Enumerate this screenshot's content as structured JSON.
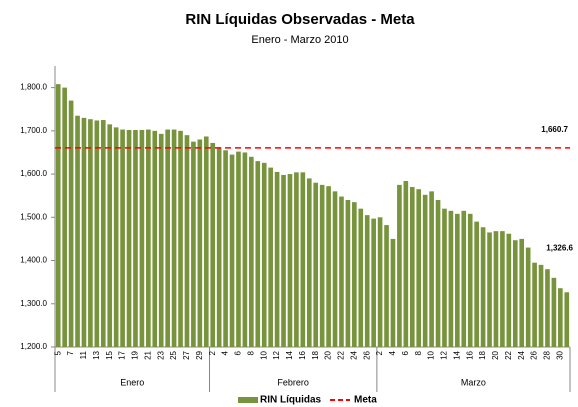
{
  "chart_data": {
    "type": "bar",
    "title": "RIN Líquidas Observadas - Meta",
    "subtitle": "Enero - Marzo 2010",
    "category_groups": [
      {
        "label": "Enero",
        "categories": [
          "5",
          null,
          "7",
          null,
          "11",
          null,
          "13",
          null,
          "15",
          null,
          "17",
          null,
          "19",
          null,
          "21",
          null,
          "23",
          null,
          "25",
          null,
          "27",
          null,
          "29",
          null
        ]
      },
      {
        "label": "Febrero",
        "categories": [
          "2",
          null,
          "4",
          null,
          "6",
          null,
          "8",
          null,
          "10",
          null,
          "12",
          null,
          "14",
          null,
          "16",
          null,
          "18",
          null,
          "20",
          null,
          "22",
          null,
          "24",
          null,
          "26",
          null
        ]
      },
      {
        "label": "Marzo",
        "categories": [
          "2",
          null,
          "4",
          null,
          "6",
          null,
          "8",
          null,
          "10",
          null,
          "12",
          null,
          "14",
          null,
          "16",
          null,
          "18",
          null,
          "20",
          null,
          "22",
          null,
          "24",
          null,
          "26",
          null,
          "28",
          null,
          "30",
          null
        ]
      }
    ],
    "series": [
      {
        "name": "RIN Líquidas",
        "color": "#77933c",
        "values": [
          1808,
          1800,
          1770,
          1735,
          1730,
          1727,
          1724,
          1725,
          1715,
          1708,
          1703,
          1702,
          1702,
          1702,
          1703,
          1700,
          1693,
          1703,
          1703,
          1700,
          1690,
          1675,
          1680,
          1687,
          1672,
          1662,
          1655,
          1645,
          1652,
          1650,
          1640,
          1630,
          1626,
          1615,
          1605,
          1598,
          1600,
          1604,
          1604,
          1590,
          1580,
          1575,
          1572,
          1560,
          1548,
          1540,
          1535,
          1520,
          1505,
          1497,
          1500,
          1482,
          1450,
          1575,
          1584,
          1570,
          1565,
          1552,
          1560,
          1540,
          1520,
          1515,
          1508,
          1515,
          1508,
          1490,
          1477,
          1465,
          1468,
          1468,
          1462,
          1447,
          1450,
          1430,
          1395,
          1390,
          1380,
          1360,
          1336,
          1326.6
        ]
      }
    ],
    "reference": {
      "name": "Meta",
      "value": 1660.7,
      "color": "#ff0000"
    },
    "annotations": [
      "1,660.7",
      "1,326.6"
    ],
    "ylim": [
      1200,
      1850
    ],
    "yticks": [
      {
        "value": 1200,
        "label": "1,200.0"
      },
      {
        "value": 1300,
        "label": "1,300.0"
      },
      {
        "value": 1400,
        "label": "1,400.0"
      },
      {
        "value": 1500,
        "label": "1,500.0"
      },
      {
        "value": 1600,
        "label": "1,600.0"
      },
      {
        "value": 1700,
        "label": "1,700.0"
      },
      {
        "value": 1800,
        "label": "1,800.0"
      }
    ],
    "legend": "bottom"
  }
}
